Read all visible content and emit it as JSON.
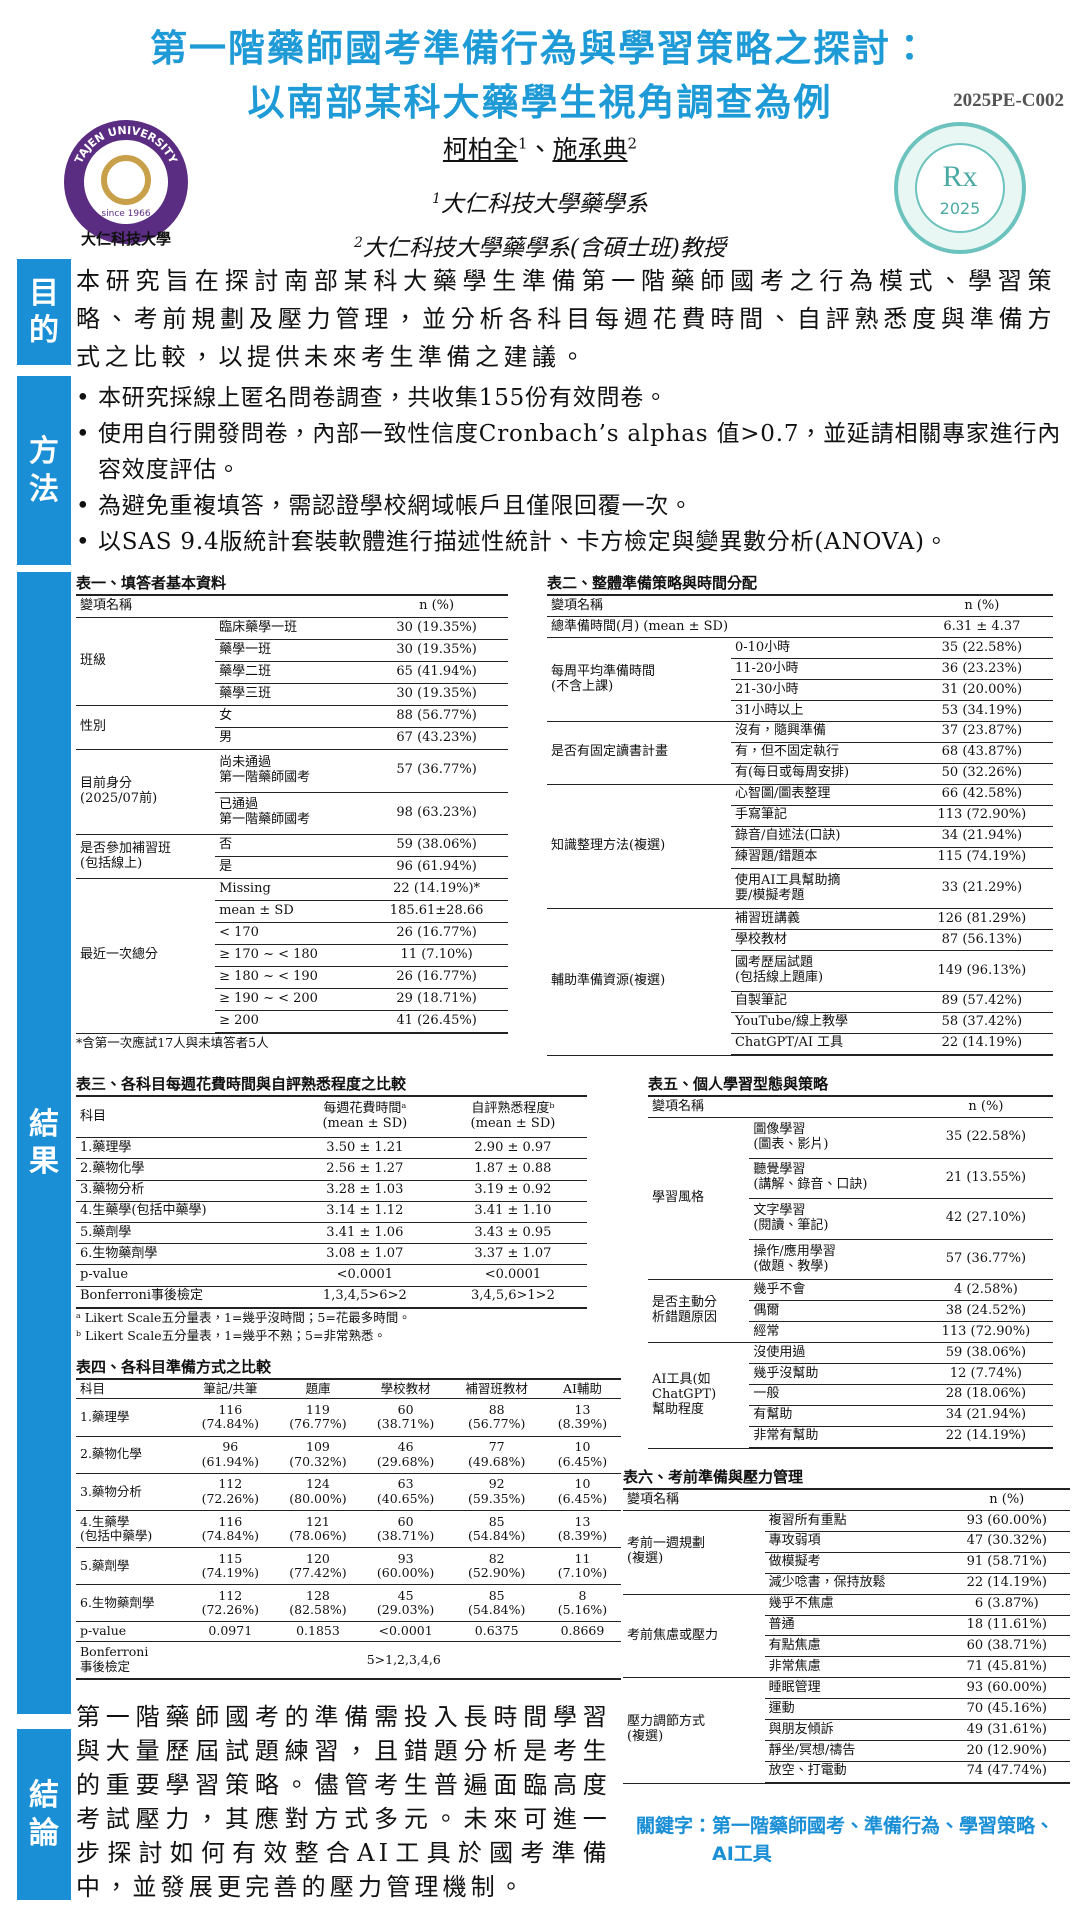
{
  "header": {
    "title_lines": [
      "第一階藥師國考準備行為與學習策略之探討：",
      "以南部某科大藥學生視角調查為例"
    ],
    "code": "2025PE-C002",
    "authors": [
      {
        "name": "柯柏全",
        "sup": "1"
      },
      {
        "name": "施承典",
        "sup": "2"
      }
    ],
    "author_separator": "、",
    "affiliations": [
      {
        "sup": "1",
        "text": "大仁科技大學藥學系"
      },
      {
        "sup": "2",
        "text": "大仁科技大學藥學系(含碩士班)教授"
      }
    ],
    "logo": {
      "top_text": "TAJEN UNIVERSITY",
      "since": "since 1966",
      "name": "大仁科技大學"
    },
    "badge": {
      "symbol": "Rx",
      "year": "2025"
    }
  },
  "sections": {
    "purpose": "目的",
    "methods": "方法",
    "results": "結果",
    "conclusion": "結論"
  },
  "purpose": "本研究旨在探討南部某科大藥學生準備第一階藥師國考之行為模式、學習策略、考前規劃及壓力管理，並分析各科目每週花費時間、自評熟悉度與準備方式之比較，以提供未來考生準備之建議。",
  "methods": [
    "本研究採線上匿名問卷調查，共收集155份有效問卷。",
    "使用自行開發問卷，內部一致性信度Cronbach’s alphas 值>0.7，並延請相關專家進行內容效度評估。",
    "為避免重複填答，需認證學校網域帳戶且僅限回覆一次。",
    "以SAS 9.4版統計套裝軟體進行描述性統計、卡方檢定與變異數分析(ANOVA)。"
  ],
  "tables": {
    "t1": {
      "title": "表一、填答者基本資料",
      "columns": [
        "變項名稱",
        "n (%)"
      ],
      "groups": [
        {
          "label": "班級",
          "items": [
            [
              "臨床藥學一班",
              "30 (19.35%)"
            ],
            [
              "藥學一班",
              "30 (19.35%)"
            ],
            [
              "藥學二班",
              "65 (41.94%)"
            ],
            [
              "藥學三班",
              "30 (19.35%)"
            ]
          ]
        },
        {
          "label": "性別",
          "items": [
            [
              "女",
              "88 (56.77%)"
            ],
            [
              "男",
              "67 (43.23%)"
            ]
          ]
        },
        {
          "label": "目前身分\n(2025/07前)",
          "items": [
            [
              "尚未通過\n第一階藥師國考",
              "57 (36.77%)"
            ],
            [
              "已通過\n第一階藥師國考",
              "98 (63.23%)"
            ]
          ]
        },
        {
          "label": "是否參加補習班\n(包括線上)",
          "items": [
            [
              "否",
              "59 (38.06%)"
            ],
            [
              "是",
              "96 (61.94%)"
            ]
          ]
        },
        {
          "label": "最近一次總分",
          "items": [
            [
              "Missing",
              "22 (14.19%)*"
            ],
            [
              "mean ± SD",
              "185.61±28.66"
            ],
            [
              "< 170",
              "26 (16.77%)"
            ],
            [
              "≥ 170 ~ < 180",
              "11 (7.10%)"
            ],
            [
              "≥ 180 ~ < 190",
              "26 (16.77%)"
            ],
            [
              "≥ 190 ~ < 200",
              "29 (18.71%)"
            ],
            [
              "≥ 200",
              "41 (26.45%)"
            ]
          ]
        }
      ],
      "notes": [
        "*含第一次應試17人與未填答者5人"
      ]
    },
    "t2": {
      "title": "表二、整體準備策略與時間分配",
      "columns": [
        "變項名稱",
        "n (%)"
      ],
      "groups": [
        {
          "label": "總準備時間(月) (mean ± SD)",
          "value": "6.31 ± 4.37"
        },
        {
          "label": "每周平均準備時間\n(不含上課)",
          "items": [
            [
              "0-10小時",
              "35 (22.58%)"
            ],
            [
              "11-20小時",
              "36 (23.23%)"
            ],
            [
              "21-30小時",
              "31 (20.00%)"
            ],
            [
              "31小時以上",
              "53 (34.19%)"
            ]
          ]
        },
        {
          "label": "是否有固定讀書計畫",
          "items": [
            [
              "沒有，隨興準備",
              "37 (23.87%)"
            ],
            [
              "有，但不固定執行",
              "68 (43.87%)"
            ],
            [
              "有(每日或每周安排)",
              "50 (32.26%)"
            ]
          ]
        },
        {
          "label": "知識整理方法(複選)",
          "items": [
            [
              "心智圖/圖表整理",
              "66 (42.58%)"
            ],
            [
              "手寫筆記",
              "113 (72.90%)"
            ],
            [
              "錄音/自述法(口訣)",
              "34 (21.94%)"
            ],
            [
              "練習題/錯題本",
              "115 (74.19%)"
            ],
            [
              "使用AI工具幫助摘\n要/模擬考題",
              "33 (21.29%)"
            ]
          ]
        },
        {
          "label": "輔助準備資源(複選)",
          "items": [
            [
              "補習班講義",
              "126 (81.29%)"
            ],
            [
              "學校教材",
              "87 (56.13%)"
            ],
            [
              "國考歷屆試題\n(包括線上題庫)",
              "149 (96.13%)"
            ],
            [
              "自製筆記",
              "89 (57.42%)"
            ],
            [
              "YouTube/線上教學",
              "58 (37.42%)"
            ],
            [
              "ChatGPT/AI 工具",
              "22 (14.19%)"
            ]
          ]
        }
      ]
    },
    "t3": {
      "title": "表三、各科目每週花費時間與自評熟悉程度之比較",
      "columns": [
        "科目",
        "每週花費時間ᵃ\n(mean ± SD)",
        "自評熟悉程度ᵇ\n(mean ± SD)"
      ],
      "rows": [
        [
          "1.藥理學",
          "3.50 ± 1.21",
          "2.90 ± 0.97"
        ],
        [
          "2.藥物化學",
          "2.56 ± 1.27",
          "1.87 ± 0.88"
        ],
        [
          "3.藥物分析",
          "3.28 ± 1.03",
          "3.19 ± 0.92"
        ],
        [
          "4.生藥學(包括中藥學)",
          "3.14 ± 1.12",
          "3.41 ± 1.10"
        ],
        [
          "5.藥劑學",
          "3.41 ± 1.06",
          "3.43 ± 0.95"
        ],
        [
          "6.生物藥劑學",
          "3.08 ± 1.07",
          "3.37 ± 1.07"
        ],
        [
          "p-value",
          "<0.0001",
          "<0.0001"
        ],
        [
          "Bonferroni事後檢定",
          "1,3,4,5>6>2",
          "3,4,5,6>1>2"
        ]
      ],
      "notes": [
        "ᵃ Likert Scale五分量表，1=幾乎沒時間；5=花最多時間。",
        "ᵇ Likert Scale五分量表，1=幾乎不熟；5=非常熟悉。"
      ]
    },
    "t4": {
      "title": "表四、各科目準備方式之比較",
      "columns": [
        "科目",
        "筆記/共筆",
        "題庫",
        "學校教材",
        "補習班教材",
        "AI輔助"
      ],
      "rows": [
        [
          "1.藥理學",
          "116\n(74.84%)",
          "119\n(76.77%)",
          "60\n(38.71%)",
          "88\n(56.77%)",
          "13\n(8.39%)"
        ],
        [
          "2.藥物化學",
          "96\n(61.94%)",
          "109\n(70.32%)",
          "46\n(29.68%)",
          "77\n(49.68%)",
          "10\n(6.45%)"
        ],
        [
          "3.藥物分析",
          "112\n(72.26%)",
          "124\n(80.00%)",
          "63\n(40.65%)",
          "92\n(59.35%)",
          "10\n(6.45%)"
        ],
        [
          "4.生藥學\n(包括中藥學)",
          "116\n(74.84%)",
          "121\n(78.06%)",
          "60\n(38.71%)",
          "85\n(54.84%)",
          "13\n(8.39%)"
        ],
        [
          "5.藥劑學",
          "115\n(74.19%)",
          "120\n(77.42%)",
          "93\n(60.00%)",
          "82\n(52.90%)",
          "11\n(7.10%)"
        ],
        [
          "6.生物藥劑學",
          "112\n(72.26%)",
          "128\n(82.58%)",
          "45\n(29.03%)",
          "85\n(54.84%)",
          "8\n(5.16%)"
        ],
        [
          "p-value",
          "0.0971",
          "0.1853",
          "<0.0001",
          "0.6375",
          "0.8669"
        ],
        [
          "Bonferroni\n事後檢定",
          "5>1,2,3,4,6"
        ]
      ]
    },
    "t5": {
      "title": "表五、個人學習型態與策略",
      "columns": [
        "變項名稱",
        "n (%)"
      ],
      "groups": [
        {
          "label": "學習風格",
          "items": [
            [
              "圖像學習\n(圖表、影片)",
              "35 (22.58%)"
            ],
            [
              "聽覺學習\n(講解、錄音、口訣)",
              "21 (13.55%)"
            ],
            [
              "文字學習\n(閱讀、筆記)",
              "42 (27.10%)"
            ],
            [
              "操作/應用學習\n(做題、教學)",
              "57 (36.77%)"
            ]
          ]
        },
        {
          "label": "是否主動分\n析錯題原因",
          "items": [
            [
              "幾乎不會",
              "4 (2.58%)"
            ],
            [
              "偶爾",
              "38 (24.52%)"
            ],
            [
              "經常",
              "113 (72.90%)"
            ]
          ]
        },
        {
          "label": "AI工具(如\nChatGPT)\n幫助程度",
          "items": [
            [
              "沒使用過",
              "59 (38.06%)"
            ],
            [
              "幾乎沒幫助",
              "12 (7.74%)"
            ],
            [
              "一般",
              "28 (18.06%)"
            ],
            [
              "有幫助",
              "34 (21.94%)"
            ],
            [
              "非常有幫助",
              "22 (14.19%)"
            ]
          ]
        }
      ]
    },
    "t6": {
      "title": "表六、考前準備與壓力管理",
      "columns": [
        "變項名稱",
        "n (%)"
      ],
      "groups": [
        {
          "label": "考前一週規劃\n(複選)",
          "items": [
            [
              "複習所有重點",
              "93 (60.00%)"
            ],
            [
              "專攻弱項",
              "47 (30.32%)"
            ],
            [
              "做模擬考",
              "91 (58.71%)"
            ],
            [
              "減少唸書，保持放鬆",
              "22 (14.19%)"
            ]
          ]
        },
        {
          "label": "考前焦慮或壓力",
          "items": [
            [
              "幾乎不焦慮",
              "6 (3.87%)"
            ],
            [
              "普通",
              "18 (11.61%)"
            ],
            [
              "有點焦慮",
              "60 (38.71%)"
            ],
            [
              "非常焦慮",
              "71 (45.81%)"
            ]
          ]
        },
        {
          "label": "壓力調節方式\n(複選)",
          "items": [
            [
              "睡眠管理",
              "93 (60.00%)"
            ],
            [
              "運動",
              "70 (45.16%)"
            ],
            [
              "與朋友傾訴",
              "49 (31.61%)"
            ],
            [
              "靜坐/冥想/禱告",
              "20 (12.90%)"
            ],
            [
              "放空、打電動",
              "74 (47.74%)"
            ]
          ]
        }
      ]
    }
  },
  "conclusion": "第一階藥師國考的準備需投入長時間學習與大量歷屆試題練習，且錯題分析是考生的重要學習策略。儘管考生普遍面臨高度考試壓力，其應對方式多元。未來可進一步探討如何有效整合AI工具於國考準備中，並發展更完善的壓力管理機制。",
  "keywords": {
    "label": "關鍵字：",
    "text": "第一階藥師國考、準備行為、學習策略、AI工具"
  }
}
